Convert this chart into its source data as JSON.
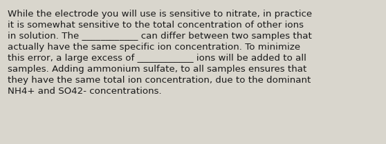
{
  "background_color": "#d9d6cd",
  "text_color": "#1a1a1a",
  "font_size": 9.6,
  "font_family": "DejaVu Sans",
  "lines": [
    "While the electrode you will use is sensitive to nitrate, in practice",
    "it is somewhat sensitive to the total concentration of other ions",
    "in solution. The ____________ can differ between two samples that",
    "actually have the same specific ion concentration. To minimize",
    "this error, a large excess of ____________ ions will be added to all",
    "samples. Adding ammonium sulfate, to all samples ensures that",
    "they have the same total ion concentration, due to the dominant",
    "NH4+ and SO42- concentrations."
  ]
}
